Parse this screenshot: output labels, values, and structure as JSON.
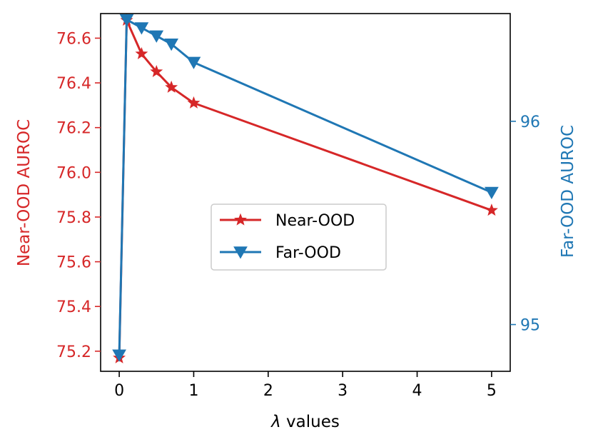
{
  "chart_data": {
    "type": "line",
    "xlabel": "λ values",
    "xlabel_italic_part": "λ",
    "xlabel_rest": " values",
    "ylabel_left": "Near-OOD AUROC",
    "ylabel_right": "Far-OOD AUROC",
    "xlim": [
      -0.25,
      5.25
    ],
    "ylim_left": [
      75.11,
      76.71
    ],
    "ylim_right": [
      94.77,
      96.53
    ],
    "x_ticks": [
      0,
      1,
      2,
      3,
      4,
      5
    ],
    "y_left_ticks": [
      "75.2",
      "75.4",
      "75.6",
      "75.8",
      "76.0",
      "76.2",
      "76.4",
      "76.6"
    ],
    "y_right_ticks": [
      "95",
      "96"
    ],
    "legend_position": "center",
    "series": [
      {
        "name": "Near-OOD",
        "axis": "left",
        "color": "#d62728",
        "marker": "star",
        "x": [
          0,
          0.1,
          0.3,
          0.5,
          0.7,
          1,
          5
        ],
        "y": [
          75.17,
          76.68,
          76.53,
          76.45,
          76.38,
          76.31,
          75.83
        ]
      },
      {
        "name": "Far-OOD",
        "axis": "right",
        "color": "#1f77b4",
        "marker": "triangle-down",
        "x": [
          0,
          0.1,
          0.3,
          0.5,
          0.7,
          1,
          5
        ],
        "y": [
          94.85,
          96.5,
          96.46,
          96.42,
          96.38,
          96.29,
          95.65
        ]
      }
    ]
  }
}
